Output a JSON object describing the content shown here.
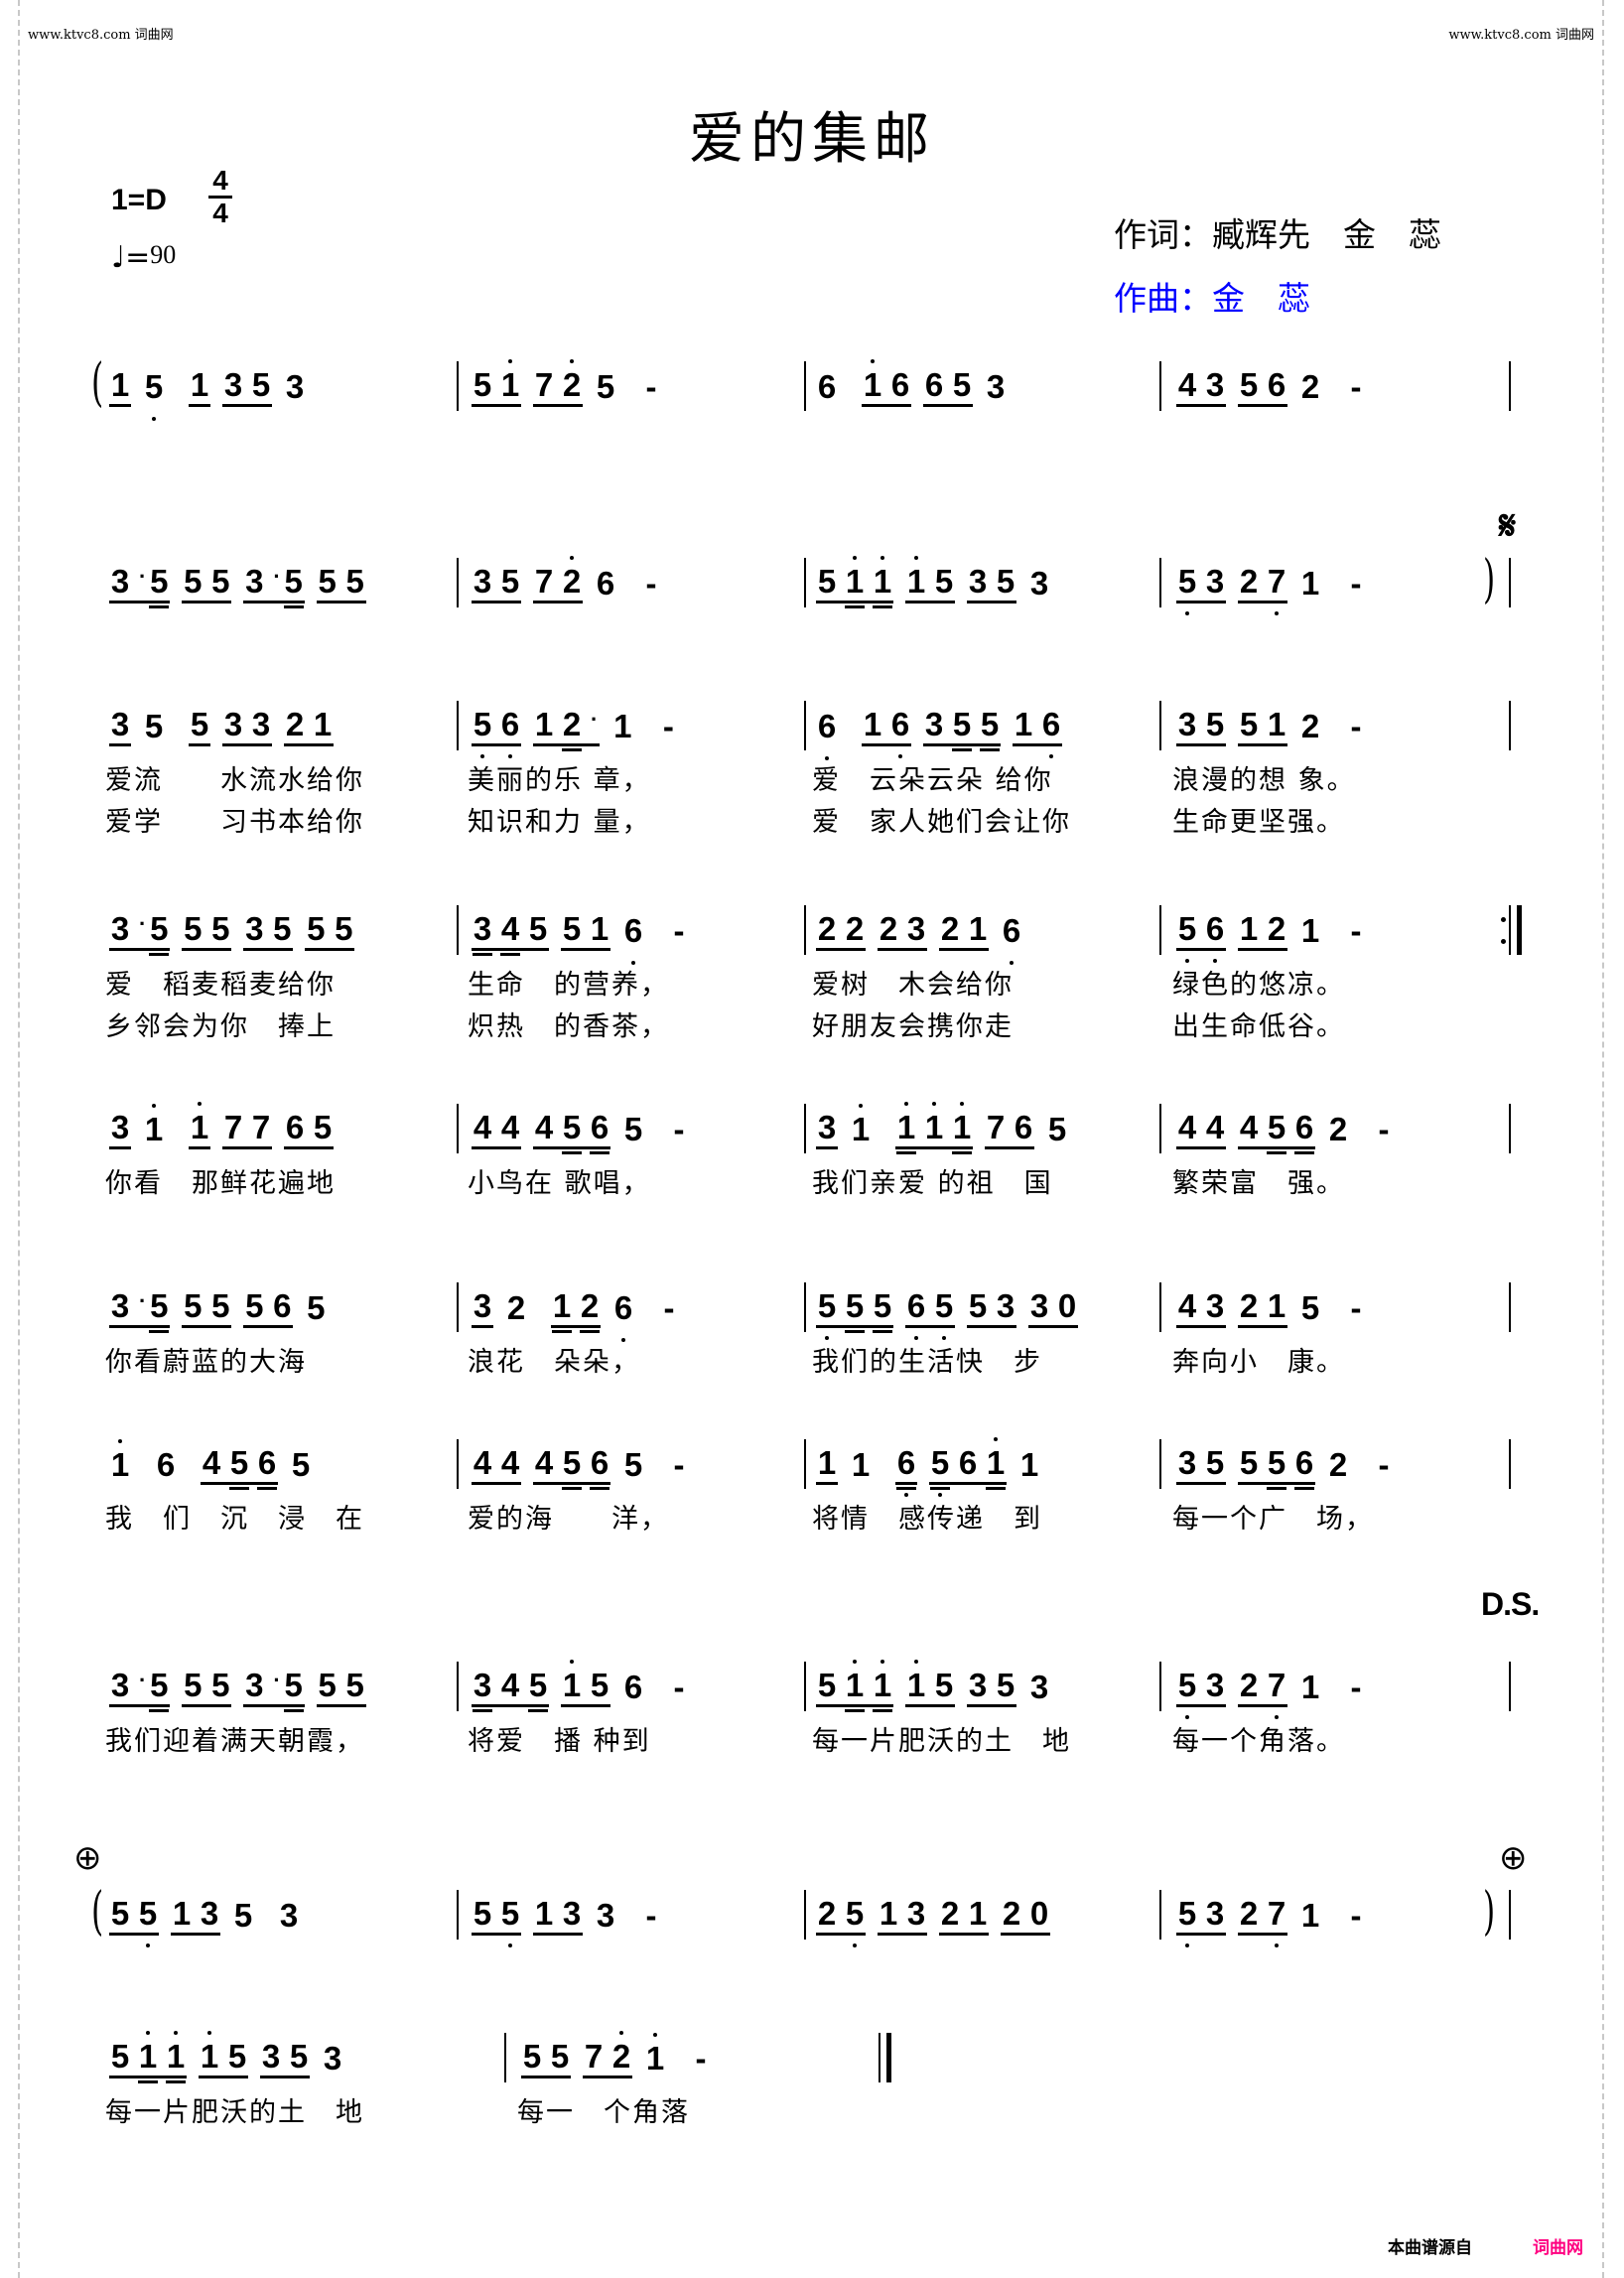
{
  "header": {
    "site_left": "www.ktvc8.com 词曲网",
    "site_right": "www.ktvc8.com 词曲网",
    "title": "爱的集邮",
    "key": "1=D",
    "time_top": "4",
    "time_bottom": "4",
    "tempo_note": "♩=",
    "tempo_value": "90",
    "lyricist": "作词：臧辉先　金　蕊",
    "composer": "作曲：金　蕊",
    "composer_color": "#0000ff"
  },
  "marks": {
    "segno": "𝄋",
    "ds": "D.S.",
    "coda": "⊕"
  },
  "rows": [
    {
      "prefix": "(",
      "measures": [
        "[1] 5, [1] [3 5] 3",
        "[5 1'] [7 2'] 5 -",
        "6 [1' 6] [6 5] 3",
        "[4 3] [5 6] 2 -"
      ],
      "lyrics": []
    },
    {
      "suffix": ")",
      "measures": [
        "[3. 5=] [5 5] [3. 5=] [5 5]",
        "[3 5] [7 2'] 6 -",
        "[5 1'= 1'=] [1' 5] [3 5] 3",
        "[5, 3] [2 7,] 1 -"
      ],
      "lyrics": []
    },
    {
      "measures": [
        "[3] 5 [5] [3 3] [2 1]",
        "[5, 6,] [1 2=.] 1 -",
        "6, [1 6,] [3 5= 5=] [1 6,]",
        "[3 5] [5 1] 2 -"
      ],
      "lyrics": [
        [
          "爱流　　水流水给你",
          "美丽的乐 章，",
          "爱　云朵云朵 给你",
          "浪漫的想 象。"
        ],
        [
          "爱学　　习书本给你",
          "知识和力 量，",
          "爱　家人她们会让你",
          "生命更坚强。"
        ]
      ]
    },
    {
      "end": "repeat",
      "measures": [
        "[3. 5=] [5 5] [3 5] [5 5]",
        "[3= 4= 5] [5 1] 6, -",
        "[2 2] [2 3] [2 1] 6,",
        "[5, 6,] [1 2] 1 -"
      ],
      "lyrics": [
        [
          "爱　稻麦稻麦给你",
          "生命　的营养，",
          "爱树　木会给你",
          "绿色的悠凉。"
        ],
        [
          "乡邻会为你　捧上",
          "炽热　的香茶，",
          "好朋友会携你走",
          "出生命低谷。"
        ]
      ]
    },
    {
      "measures": [
        "[3] 1' [1'] [7 7] [6 5]",
        "[4 4] [4 5= 6=] 5 -",
        "[3] 1' [1'= 1' 1'=] [7 6] 5",
        "[4 4] [4 5= 6=] 2 -"
      ],
      "lyrics": [
        [
          "你看　那鲜花遍地",
          "小鸟在 歌唱，",
          "我们亲爱 的祖　国",
          "繁荣富　强。"
        ]
      ]
    },
    {
      "measures": [
        "[3. 5=] [5 5] [5 6] 5",
        "[3] 2 [1= 2=] 6, -",
        "[5, 5= 5=] [6, 5,] [5 3] [3 0]",
        "[4 3] [2 1] 5 -"
      ],
      "lyrics": [
        [
          "你看蔚蓝的大海",
          "浪花　朵朵，",
          "我们的生活快　步",
          "奔向小　康。"
        ]
      ]
    },
    {
      "measures": [
        "1' 6 [4 5= 6=] 5",
        "[4 4] [4 5= 6=] 5 -",
        "[1] 1 [6,=] [5,= 6 1'=] 1",
        "[3 5] [5 5= 6=] 2 -"
      ],
      "lyrics": [
        [
          "我　们　沉　浸　在",
          "爱的海　　洋，",
          "将情　感传递　到",
          "每一个广　场，"
        ]
      ]
    },
    {
      "measures": [
        "[3. 5=] [5 5] [3. 5=] [5 5]",
        "[3= 4 5=] [1' 5] 6 -",
        "[5 1'= 1'=] [1' 5] [3 5] 3",
        "[5, 3] [2 7,] 1 -"
      ],
      "lyrics": [
        [
          "我们迎着满天朝霞，",
          "将爱　播 种到",
          "每一片肥沃的土　地",
          "每一个角落。"
        ]
      ]
    },
    {
      "prefix": "(",
      "suffix": ")",
      "measures": [
        "[5 5,] [1 3] 5 3",
        "[5 5,] [1 3] 3 -",
        "[2 5,] [1 3] [2 1] [2 0]",
        "[5, 3] [2 7,] 1 -"
      ],
      "lyrics": []
    },
    {
      "end": "final",
      "measures": [
        "[5 1'= 1'=] [1' 5] [3 5] 3",
        "[5 5] [7 2'] 1' -"
      ],
      "lyrics": [
        [
          "每一片肥沃的土　地",
          "每一　个角落"
        ]
      ]
    }
  ],
  "footer": {
    "source_label": "本曲谱源自",
    "source_site": "词曲网",
    "source_color": "#ff0080"
  }
}
